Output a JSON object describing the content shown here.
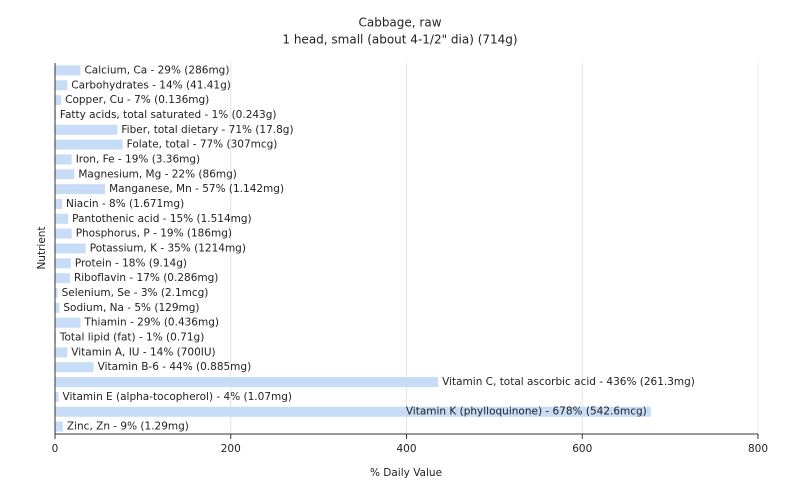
{
  "chart_data": {
    "type": "barh",
    "title": "Cabbage, raw",
    "subtitle": "1 head, small (about 4-1/2\" dia) (714g)",
    "x_label": "% Daily Value",
    "y_label": "Nutrient",
    "categories": [
      "Calcium, Ca - 29% (286mg)",
      "Carbohydrates - 14% (41.41g)",
      "Copper, Cu - 7% (0.136mg)",
      "Fatty acids, total saturated - 1% (0.243g)",
      "Fiber, total dietary - 71% (17.8g)",
      "Folate, total - 77% (307mcg)",
      "Iron, Fe - 19% (3.36mg)",
      "Magnesium, Mg - 22% (86mg)",
      "Manganese, Mn - 57% (1.142mg)",
      "Niacin - 8% (1.671mg)",
      "Pantothenic acid - 15% (1.514mg)",
      "Phosphorus, P - 19% (186mg)",
      "Potassium, K - 35% (1214mg)",
      "Protein - 18% (9.14g)",
      "Riboflavin - 17% (0.286mg)",
      "Selenium, Se - 3% (2.1mcg)",
      "Sodium, Na - 5% (129mg)",
      "Thiamin - 29% (0.436mg)",
      "Total lipid (fat) - 1% (0.71g)",
      "Vitamin A, IU - 14% (700IU)",
      "Vitamin B-6 - 44% (0.885mg)",
      "Vitamin C, total ascorbic acid - 436% (261.3mg)",
      "Vitamin E (alpha-tocopherol) - 4% (1.07mg)",
      "Vitamin K (phylloquinone) - 678% (542.6mcg)",
      "Zinc, Zn - 9% (1.29mg)"
    ],
    "values": [
      29,
      14,
      7,
      1,
      71,
      77,
      19,
      22,
      57,
      8,
      15,
      19,
      35,
      18,
      17,
      3,
      5,
      29,
      1,
      14,
      44,
      436,
      4,
      678,
      9
    ],
    "color": "#c6dcf7",
    "xlim": [
      0,
      800
    ],
    "xticks": [
      0,
      200,
      400,
      600,
      800
    ],
    "grid": true
  }
}
